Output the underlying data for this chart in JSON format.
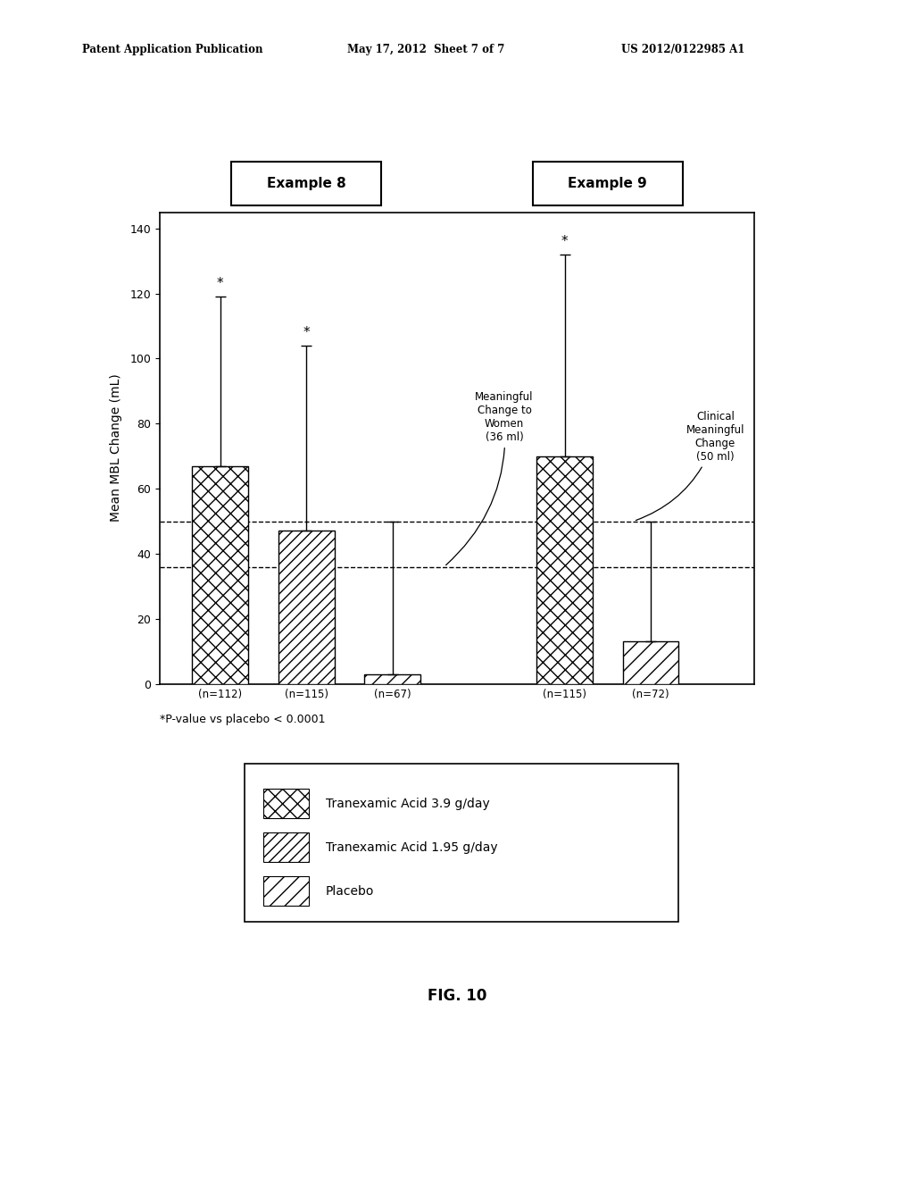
{
  "header_left": "Patent Application Publication",
  "header_mid": "May 17, 2012  Sheet 7 of 7",
  "header_right": "US 2012/0122985 A1",
  "example8_label": "Example 8",
  "example9_label": "Example 9",
  "bar_values": [
    67,
    47,
    3,
    70,
    13
  ],
  "bar_errors_upper": [
    52,
    57,
    47,
    62,
    37
  ],
  "bar_x_positions": [
    1,
    2,
    3,
    5,
    6
  ],
  "bar_labels": [
    "(n=112)",
    "(n=115)",
    "(n=67)",
    "(n=115)",
    "(n=72)"
  ],
  "bar_types": [
    0,
    1,
    2,
    0,
    2
  ],
  "hatch_patterns": [
    "xx",
    "///",
    "//"
  ],
  "ylabel": "Mean MBL Change (mL)",
  "ylim": [
    0,
    145
  ],
  "yticks": [
    0,
    20,
    40,
    60,
    80,
    100,
    120,
    140
  ],
  "xlim": [
    0.3,
    7.2
  ],
  "hline1_y": 36,
  "hline2_y": 50,
  "star_bars": [
    0,
    1,
    3
  ],
  "annotation1_text": "Meaningful\nChange to\nWomen\n(36 ml)",
  "annotation2_text": "Clinical\nMeaningful\nChange\n(50 ml)",
  "legend_labels": [
    "Tranexamic Acid 3.9 g/day",
    "Tranexamic Acid 1.95 g/day",
    "Placebo"
  ],
  "footnote": "*P-value vs placebo < 0.0001",
  "fig_caption": "FIG. 10",
  "background_color": "#ffffff"
}
